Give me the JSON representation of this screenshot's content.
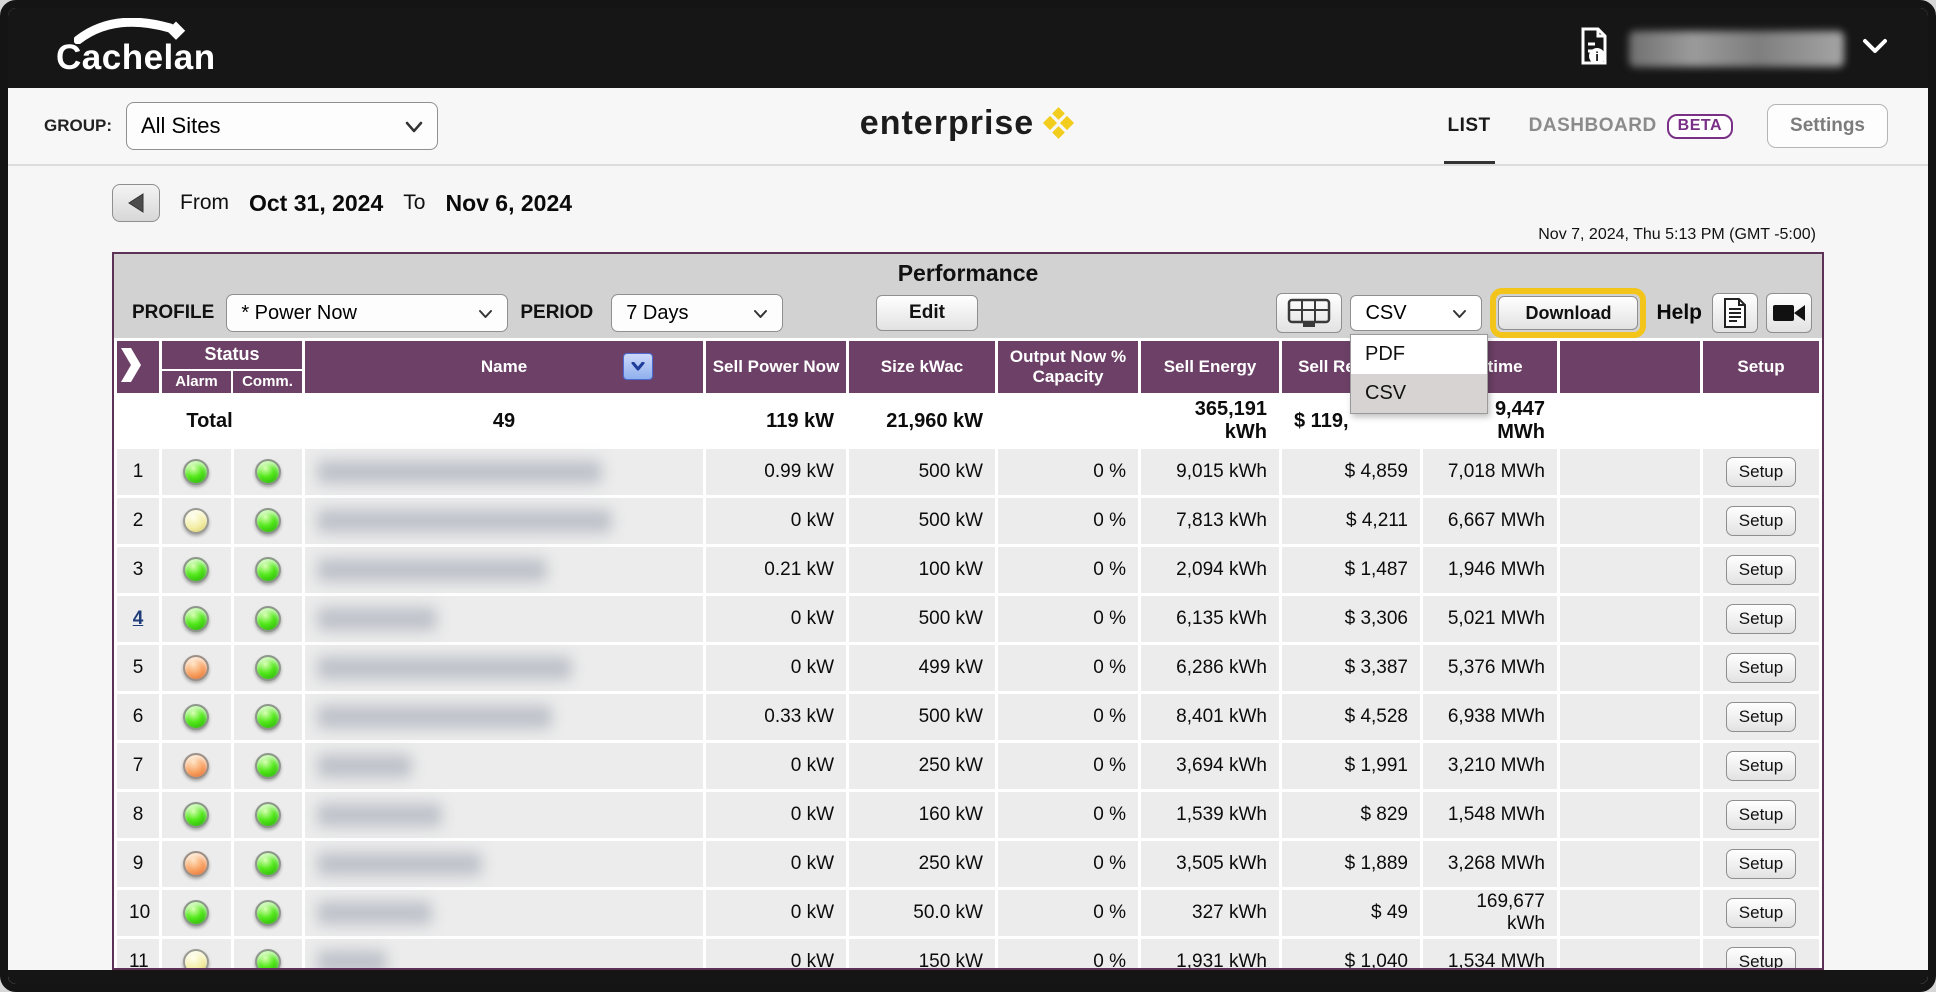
{
  "colors": {
    "header_purple": "#6d4167",
    "highlight_yellow": "#f3c51a",
    "beta_purple": "#7a2f86",
    "led_green": "#52e81a",
    "led_yellow": "#f3eda2",
    "led_orange": "#f79c5a",
    "link_blue": "#1f3d7a",
    "logo_diamond_yellow": "#f2cd1d"
  },
  "topbar": {
    "brand": "Cachelan"
  },
  "navbar": {
    "group_label": "GROUP:",
    "group_value": "All Sites",
    "logo": "enterprise",
    "list_tab": "LIST",
    "dashboard_tab": "DASHBOARD",
    "beta_badge": "BETA",
    "settings": "Settings"
  },
  "datebar": {
    "from_label": "From",
    "from": "Oct 31, 2024",
    "to_label": "To",
    "to": "Nov 6, 2024"
  },
  "clock": "Nov 7, 2024, Thu 5:13 PM (GMT -5:00)",
  "toolbar": {
    "title": "Performance",
    "profile_label": "PROFILE",
    "profile": "* Power Now",
    "period_label": "PERIOD",
    "period": "7 Days",
    "edit": "Edit",
    "format": "CSV",
    "format_options": [
      "PDF",
      "CSV"
    ],
    "format_selected": "CSV",
    "download": "Download",
    "help": "Help"
  },
  "table": {
    "headers": {
      "status": "Status",
      "alarm": "Alarm",
      "comm": "Comm.",
      "name": "Name",
      "power": "Sell Power Now",
      "size": "Size kWac",
      "output": "Output Now % Capacity",
      "energy": "Sell Energy",
      "rev": "Sell Revenue",
      "life": "Lifetime",
      "setup": "Setup"
    },
    "setup_button": "Setup",
    "total": {
      "label": "Total",
      "count": "49",
      "power": "119 kW",
      "size": "21,960 kW",
      "output": "",
      "energy": "365,191 kWh",
      "rev": "$ 119,",
      "life": "9,447 MWh"
    },
    "rows": [
      {
        "n": "1",
        "link": false,
        "alarm": "green",
        "comm": "green",
        "blur_w": 285,
        "power": "0.99 kW",
        "size": "500 kW",
        "output": "0 %",
        "energy": "9,015 kWh",
        "rev": "$ 4,859",
        "life": "7,018 MWh"
      },
      {
        "n": "2",
        "link": false,
        "alarm": "yellow",
        "comm": "green",
        "blur_w": 295,
        "power": "0 kW",
        "size": "500 kW",
        "output": "0 %",
        "energy": "7,813 kWh",
        "rev": "$ 4,211",
        "life": "6,667 MWh"
      },
      {
        "n": "3",
        "link": false,
        "alarm": "green",
        "comm": "green",
        "blur_w": 230,
        "power": "0.21 kW",
        "size": "100 kW",
        "output": "0 %",
        "energy": "2,094 kWh",
        "rev": "$ 1,487",
        "life": "1,946 MWh"
      },
      {
        "n": "4",
        "link": true,
        "alarm": "green",
        "comm": "green",
        "blur_w": 120,
        "power": "0 kW",
        "size": "500 kW",
        "output": "0 %",
        "energy": "6,135 kWh",
        "rev": "$ 3,306",
        "life": "5,021 MWh"
      },
      {
        "n": "5",
        "link": false,
        "alarm": "orange",
        "comm": "green",
        "blur_w": 255,
        "power": "0 kW",
        "size": "499 kW",
        "output": "0 %",
        "energy": "6,286 kWh",
        "rev": "$ 3,387",
        "life": "5,376 MWh"
      },
      {
        "n": "6",
        "link": false,
        "alarm": "green",
        "comm": "green",
        "blur_w": 235,
        "power": "0.33 kW",
        "size": "500 kW",
        "output": "0 %",
        "energy": "8,401 kWh",
        "rev": "$ 4,528",
        "life": "6,938 MWh"
      },
      {
        "n": "7",
        "link": false,
        "alarm": "orange",
        "comm": "green",
        "blur_w": 95,
        "power": "0 kW",
        "size": "250 kW",
        "output": "0 %",
        "energy": "3,694 kWh",
        "rev": "$ 1,991",
        "life": "3,210 MWh"
      },
      {
        "n": "8",
        "link": false,
        "alarm": "green",
        "comm": "green",
        "blur_w": 125,
        "power": "0 kW",
        "size": "160 kW",
        "output": "0 %",
        "energy": "1,539 kWh",
        "rev": "$ 829",
        "life": "1,548 MWh"
      },
      {
        "n": "9",
        "link": false,
        "alarm": "orange",
        "comm": "green",
        "blur_w": 165,
        "power": "0 kW",
        "size": "250 kW",
        "output": "0 %",
        "energy": "3,505 kWh",
        "rev": "$ 1,889",
        "life": "3,268 MWh"
      },
      {
        "n": "10",
        "link": false,
        "alarm": "green",
        "comm": "green",
        "blur_w": 115,
        "power": "0 kW",
        "size": "50.0 kW",
        "output": "0 %",
        "energy": "327 kWh",
        "rev": "$ 49",
        "life": "169,677 kWh"
      },
      {
        "n": "11",
        "link": false,
        "alarm": "yellow",
        "comm": "green",
        "blur_w": 70,
        "power": "0 kW",
        "size": "150 kW",
        "output": "0 %",
        "energy": "1,931 kWh",
        "rev": "$ 1,040",
        "life": "1,534 MWh"
      }
    ]
  }
}
